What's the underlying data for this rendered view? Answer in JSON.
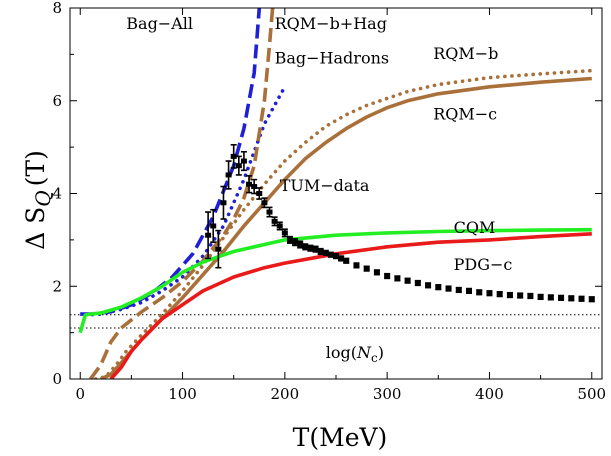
{
  "chart_data": {
    "type": "line",
    "title": "",
    "xlabel": "T(MeV)",
    "ylabel_main": "Δ S",
    "ylabel_sub": "Q",
    "ylabel_tail": "(T)",
    "xlim": [
      -10,
      510
    ],
    "ylim": [
      0,
      8
    ],
    "xticks": [
      0,
      100,
      200,
      300,
      400,
      500
    ],
    "yticks": [
      0,
      2,
      4,
      6,
      8
    ],
    "grid": false,
    "legend": "none (inline labels)",
    "series": [
      {
        "name": "Bag-All",
        "color": "#1f1fd6",
        "dash": "dashed",
        "x": [
          0,
          10,
          30,
          50,
          70,
          90,
          110,
          130,
          150,
          160,
          170,
          175
        ],
        "y": [
          1.4,
          1.4,
          1.45,
          1.6,
          1.85,
          2.2,
          2.7,
          3.5,
          4.6,
          5.4,
          6.6,
          8.0
        ]
      },
      {
        "name": "Bag-Hadrons",
        "color": "#1f1fd6",
        "dash": "dotted",
        "x": [
          5,
          20,
          40,
          60,
          80,
          100,
          120,
          140,
          160,
          180,
          200
        ],
        "y": [
          1.38,
          1.4,
          1.5,
          1.65,
          1.9,
          2.2,
          2.65,
          3.3,
          4.3,
          5.5,
          6.3
        ]
      },
      {
        "name": "RQM-b+Hag",
        "color": "#a9703a",
        "dash": "dashed",
        "x": [
          10,
          20,
          30,
          40,
          60,
          80,
          100,
          120,
          140,
          150,
          160,
          170,
          180,
          185,
          188
        ],
        "y": [
          0.0,
          0.3,
          0.8,
          1.1,
          1.45,
          1.75,
          2.1,
          2.55,
          3.1,
          3.45,
          3.9,
          4.6,
          6.0,
          7.2,
          8.0
        ]
      },
      {
        "name": "RQM-b",
        "color": "#a9703a",
        "dash": "dotted",
        "x": [
          15,
          25,
          35,
          45,
          60,
          80,
          100,
          120,
          140,
          160,
          180,
          200,
          220,
          240,
          260,
          280,
          300,
          320,
          350,
          400,
          450,
          500
        ],
        "y": [
          0.0,
          0.05,
          0.3,
          0.6,
          0.95,
          1.4,
          1.9,
          2.45,
          3.05,
          3.65,
          4.2,
          4.7,
          5.1,
          5.45,
          5.7,
          5.9,
          6.05,
          6.2,
          6.35,
          6.5,
          6.58,
          6.65
        ]
      },
      {
        "name": "RQM-c",
        "color": "#a9703a",
        "dash": "solid",
        "x": [
          20,
          30,
          40,
          50,
          60,
          80,
          100,
          120,
          140,
          160,
          180,
          200,
          220,
          240,
          260,
          280,
          300,
          320,
          350,
          400,
          450,
          500
        ],
        "y": [
          0.0,
          0.1,
          0.35,
          0.6,
          0.85,
          1.3,
          1.75,
          2.25,
          2.75,
          3.3,
          3.8,
          4.3,
          4.75,
          5.1,
          5.4,
          5.65,
          5.85,
          6.0,
          6.15,
          6.3,
          6.4,
          6.48
        ]
      },
      {
        "name": "CQM",
        "color": "#22ee22",
        "dash": "solid",
        "x": [
          0,
          5,
          10,
          20,
          40,
          60,
          80,
          100,
          120,
          150,
          180,
          200,
          250,
          300,
          350,
          400,
          450,
          500
        ],
        "y": [
          1.0,
          1.38,
          1.4,
          1.42,
          1.55,
          1.75,
          2.0,
          2.3,
          2.52,
          2.75,
          2.9,
          3.0,
          3.1,
          3.15,
          3.18,
          3.2,
          3.21,
          3.22
        ]
      },
      {
        "name": "PDG-c",
        "color": "#e81a1a",
        "dash": "solid",
        "x": [
          30,
          40,
          50,
          60,
          80,
          100,
          120,
          150,
          180,
          200,
          250,
          300,
          350,
          400,
          450,
          500
        ],
        "y": [
          0.0,
          0.25,
          0.6,
          0.85,
          1.3,
          1.6,
          1.9,
          2.2,
          2.4,
          2.5,
          2.7,
          2.85,
          2.95,
          3.0,
          3.07,
          3.13
        ]
      }
    ],
    "reference_lines": [
      {
        "y": 1.3863,
        "style": "dotted"
      },
      {
        "y": 1.0986,
        "style": "dotted"
      }
    ],
    "tum_data": {
      "name": "TUM-data",
      "x": [
        125,
        130,
        135,
        140,
        145,
        150,
        155,
        160,
        165,
        170,
        175,
        180,
        185,
        190,
        195,
        200,
        205,
        210,
        215,
        220,
        225,
        230,
        235,
        240,
        245,
        250,
        255,
        260,
        270,
        280,
        290,
        300,
        310,
        320,
        330,
        340,
        350,
        360,
        370,
        380,
        390,
        400,
        410,
        420,
        430,
        440,
        450,
        460,
        470,
        480,
        490,
        500
      ],
      "y": [
        3.1,
        3.3,
        2.8,
        3.8,
        4.4,
        4.8,
        4.6,
        4.7,
        4.2,
        4.15,
        4.0,
        3.8,
        3.6,
        3.4,
        3.3,
        3.15,
        3.0,
        2.95,
        2.9,
        2.85,
        2.82,
        2.8,
        2.75,
        2.72,
        2.68,
        2.65,
        2.6,
        2.55,
        2.45,
        2.38,
        2.3,
        2.22,
        2.17,
        2.12,
        2.07,
        2.02,
        1.98,
        1.95,
        1.92,
        1.9,
        1.87,
        1.85,
        1.83,
        1.81,
        1.8,
        1.79,
        1.77,
        1.76,
        1.75,
        1.74,
        1.73,
        1.72
      ],
      "err": [
        0.5,
        0.35,
        0.4,
        0.35,
        0.3,
        0.25,
        0.2,
        0.2,
        0.18,
        0.15,
        0.12,
        0.1,
        0.1,
        0.09,
        0.08,
        0.08,
        0.07,
        0.07,
        0.07,
        0.06,
        0.06,
        0.06,
        0.06,
        0.05,
        0.05,
        0.05,
        0.05,
        0.05,
        0.05,
        0.05,
        0.05,
        0.05,
        0.05,
        0.05,
        0.05,
        0.05,
        0.05,
        0.05,
        0.05,
        0.05,
        0.05,
        0.05,
        0.05,
        0.05,
        0.05,
        0.05,
        0.05,
        0.05,
        0.05,
        0.05,
        0.05,
        0.05
      ]
    },
    "annotations": [
      {
        "text": "Bag−All",
        "x": 45,
        "y": 7.55
      },
      {
        "text": "RQM−b+Hag",
        "x": 190,
        "y": 7.55
      },
      {
        "text": "Bag−Hadrons",
        "x": 190,
        "y": 6.8
      },
      {
        "text": "RQM−b",
        "x": 345,
        "y": 6.9
      },
      {
        "text": "RQM−c",
        "x": 345,
        "y": 5.6
      },
      {
        "text": "TUM−data",
        "x": 195,
        "y": 4.05
      },
      {
        "text": "CQM",
        "x": 365,
        "y": 3.15
      },
      {
        "text": "PDG−c",
        "x": 365,
        "y": 2.35
      }
    ],
    "log_label": {
      "prefix": "log(",
      "symbol": "N",
      "sub": "c",
      "suffix": ")",
      "x": 240,
      "y": 0.45
    }
  }
}
